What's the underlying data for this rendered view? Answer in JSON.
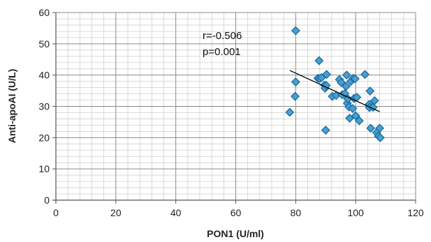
{
  "chart_data": {
    "type": "scatter",
    "xlabel": "PON1 (U/ml)",
    "ylabel": "Anti-apoAI (U/L)",
    "xlim": [
      0,
      120
    ],
    "ylim": [
      0,
      60
    ],
    "x_ticks": [
      "0",
      "20",
      "40",
      "60",
      "80",
      "100",
      "120"
    ],
    "y_ticks": [
      "0",
      "10",
      "20",
      "30",
      "40",
      "50",
      "60"
    ],
    "grid": true,
    "legend": "none",
    "annotations": [
      "r=-0.506",
      "p=0.001"
    ],
    "marker_color": "#4a9fd0",
    "marker_edge_color": "#1d6fa5",
    "trendline": {
      "x": [
        78,
        108
      ],
      "y": [
        41.5,
        28.3
      ]
    },
    "series": [
      {
        "points": [
          [
            78,
            28.1
          ],
          [
            79.8,
            33.2
          ],
          [
            80,
            37.8
          ],
          [
            80,
            54.2
          ],
          [
            87.8,
            44.6
          ],
          [
            87.4,
            39
          ],
          [
            88,
            38.8
          ],
          [
            88.6,
            39.2
          ],
          [
            89.6,
            36.8
          ],
          [
            89.8,
            35.8
          ],
          [
            90.2,
            36.7
          ],
          [
            90.3,
            40.2
          ],
          [
            90,
            22.4
          ],
          [
            92.2,
            33.2
          ],
          [
            93.5,
            33.5
          ],
          [
            94.6,
            38.6
          ],
          [
            95.2,
            37.6
          ],
          [
            95.5,
            33.7
          ],
          [
            96.4,
            34.1
          ],
          [
            96.8,
            36.4
          ],
          [
            97,
            40
          ],
          [
            97.2,
            31
          ],
          [
            97.4,
            32.4
          ],
          [
            97.8,
            29.8
          ],
          [
            98,
            26.2
          ],
          [
            98.4,
            38
          ],
          [
            99.2,
            39
          ],
          [
            99,
            29.3
          ],
          [
            99.4,
            32.5
          ],
          [
            99.8,
            38.8
          ],
          [
            100,
            27
          ],
          [
            100.4,
            32.9
          ],
          [
            101.2,
            25.4
          ],
          [
            103.1,
            40.2
          ],
          [
            104.5,
            30.6
          ],
          [
            104.6,
            29.6
          ],
          [
            104.8,
            34.9
          ],
          [
            105,
            23
          ],
          [
            105.8,
            29.7
          ],
          [
            106.3,
            31.8
          ],
          [
            107,
            21.6
          ],
          [
            107.6,
            20.5
          ],
          [
            108,
            23
          ],
          [
            108.2,
            20
          ]
        ]
      }
    ]
  }
}
